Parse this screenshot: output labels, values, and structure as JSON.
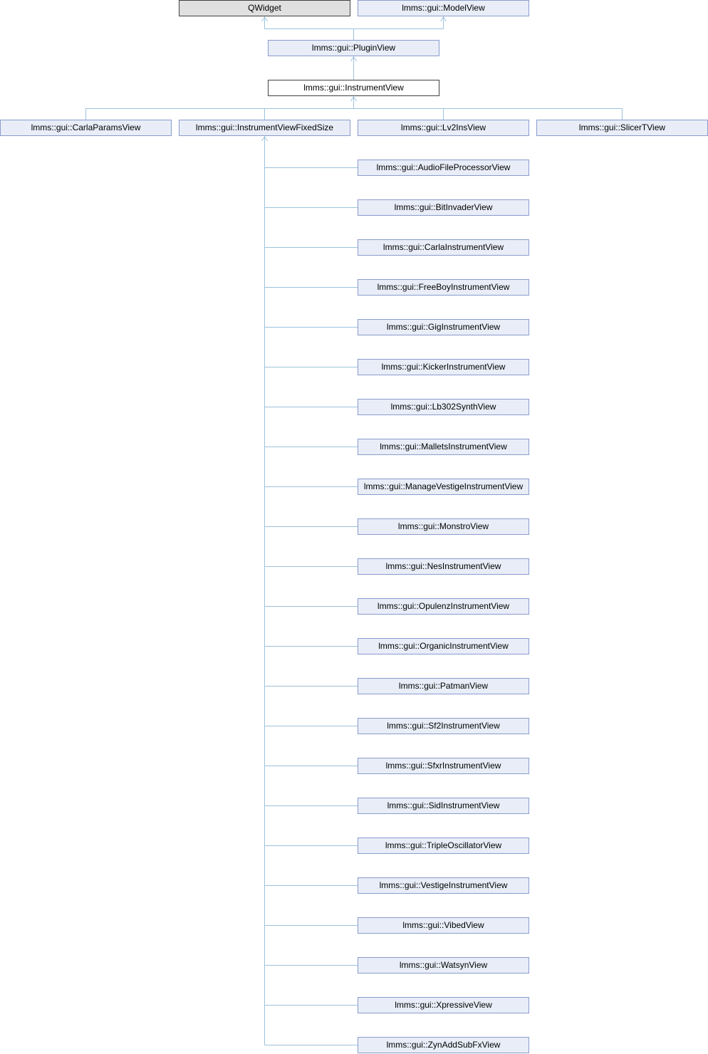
{
  "bases": [
    "QWidget",
    "lmms::gui::ModelView"
  ],
  "plugin_view": "lmms::gui::PluginView",
  "instrument_view": "lmms::gui::InstrumentView",
  "direct_children": [
    "lmms::gui::CarlaParamsView",
    "lmms::gui::InstrumentViewFixedSize",
    "lmms::gui::Lv2InsView",
    "lmms::gui::SlicerTView"
  ],
  "fixed_size_children": [
    "lmms::gui::AudioFileProcessorView",
    "lmms::gui::BitInvaderView",
    "lmms::gui::CarlaInstrumentView",
    "lmms::gui::FreeBoyInstrumentView",
    "lmms::gui::GigInstrumentView",
    "lmms::gui::KickerInstrumentView",
    "lmms::gui::Lb302SynthView",
    "lmms::gui::MalletsInstrumentView",
    "lmms::gui::ManageVestigeInstrumentView",
    "lmms::gui::MonstroView",
    "lmms::gui::NesInstrumentView",
    "lmms::gui::OpulenzInstrumentView",
    "lmms::gui::OrganicInstrumentView",
    "lmms::gui::PatmanView",
    "lmms::gui::Sf2InstrumentView",
    "lmms::gui::SfxrInstrumentView",
    "lmms::gui::SidInstrumentView",
    "lmms::gui::TripleOscillatorView",
    "lmms::gui::VestigeInstrumentView",
    "lmms::gui::VibedView",
    "lmms::gui::WatsynView",
    "lmms::gui::XpressiveView",
    "lmms::gui::ZynAddSubFxView"
  ]
}
